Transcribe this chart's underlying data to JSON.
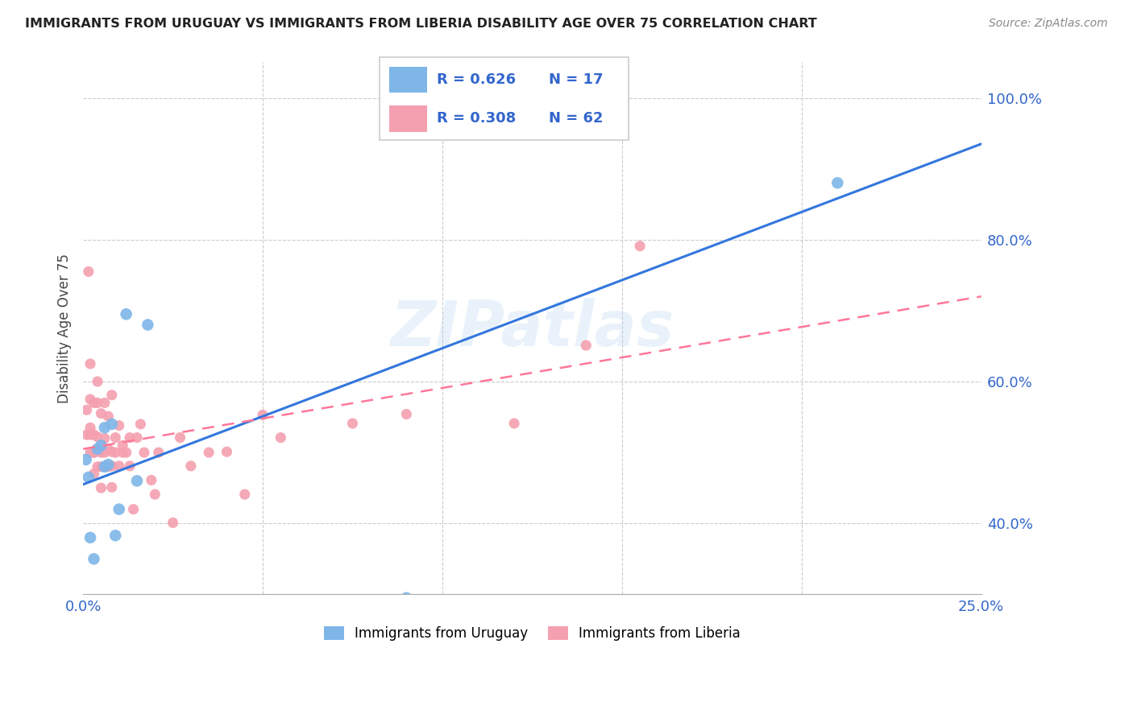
{
  "title": "IMMIGRANTS FROM URUGUAY VS IMMIGRANTS FROM LIBERIA DISABILITY AGE OVER 75 CORRELATION CHART",
  "source": "Source: ZipAtlas.com",
  "ylabel": "Disability Age Over 75",
  "xlim": [
    0.0,
    0.25
  ],
  "ylim": [
    0.3,
    1.05
  ],
  "xticks": [
    0.0,
    0.05,
    0.1,
    0.15,
    0.2,
    0.25
  ],
  "xtick_labels": [
    "0.0%",
    "",
    "",
    "",
    "",
    "25.0%"
  ],
  "yticks_right": [
    0.4,
    0.6,
    0.8,
    1.0
  ],
  "ytick_labels_right": [
    "40.0%",
    "60.0%",
    "80.0%",
    "100.0%"
  ],
  "uruguay_R": 0.626,
  "uruguay_N": 17,
  "liberia_R": 0.308,
  "liberia_N": 62,
  "uruguay_color": "#7EB6E8",
  "liberia_color": "#F4A0B0",
  "line_uruguay_color": "#3377DD",
  "line_liberia_color": "#FF7799",
  "watermark": "ZIPatlas",
  "legend_label_1": "Immigrants from Uruguay",
  "legend_label_2": "Immigrants from Liberia",
  "uruguay_x": [
    0.0008,
    0.0015,
    0.002,
    0.003,
    0.004,
    0.005,
    0.006,
    0.006,
    0.007,
    0.008,
    0.009,
    0.01,
    0.012,
    0.015,
    0.018,
    0.09,
    0.21
  ],
  "uruguay_y": [
    0.49,
    0.465,
    0.38,
    0.35,
    0.505,
    0.51,
    0.535,
    0.48,
    0.483,
    0.54,
    0.383,
    0.42,
    0.695,
    0.46,
    0.68,
    0.295,
    0.88
  ],
  "liberia_x": [
    0.001,
    0.001,
    0.0015,
    0.002,
    0.002,
    0.002,
    0.002,
    0.002,
    0.003,
    0.003,
    0.003,
    0.003,
    0.003,
    0.004,
    0.004,
    0.004,
    0.004,
    0.004,
    0.005,
    0.005,
    0.005,
    0.005,
    0.006,
    0.006,
    0.006,
    0.006,
    0.007,
    0.007,
    0.007,
    0.008,
    0.008,
    0.008,
    0.008,
    0.009,
    0.009,
    0.01,
    0.01,
    0.011,
    0.011,
    0.012,
    0.013,
    0.013,
    0.014,
    0.015,
    0.016,
    0.017,
    0.019,
    0.02,
    0.021,
    0.025,
    0.027,
    0.03,
    0.035,
    0.04,
    0.045,
    0.05,
    0.055,
    0.075,
    0.09,
    0.12,
    0.14,
    0.155
  ],
  "liberia_y": [
    0.525,
    0.56,
    0.755,
    0.5,
    0.525,
    0.535,
    0.575,
    0.625,
    0.47,
    0.5,
    0.525,
    0.57,
    0.5,
    0.48,
    0.503,
    0.522,
    0.57,
    0.6,
    0.45,
    0.48,
    0.5,
    0.555,
    0.48,
    0.5,
    0.52,
    0.57,
    0.48,
    0.505,
    0.551,
    0.451,
    0.481,
    0.501,
    0.581,
    0.5,
    0.521,
    0.481,
    0.538,
    0.5,
    0.51,
    0.5,
    0.481,
    0.521,
    0.42,
    0.521,
    0.54,
    0.5,
    0.461,
    0.441,
    0.5,
    0.401,
    0.521,
    0.481,
    0.5,
    0.501,
    0.441,
    0.553,
    0.521,
    0.541,
    0.554,
    0.541,
    0.651,
    0.791
  ],
  "line_uruguay_x0": 0.0,
  "line_uruguay_y0": 0.455,
  "line_uruguay_x1": 0.25,
  "line_uruguay_y1": 0.935,
  "line_liberia_x0": 0.0,
  "line_liberia_y0": 0.505,
  "line_liberia_x1": 0.25,
  "line_liberia_y1": 0.72
}
